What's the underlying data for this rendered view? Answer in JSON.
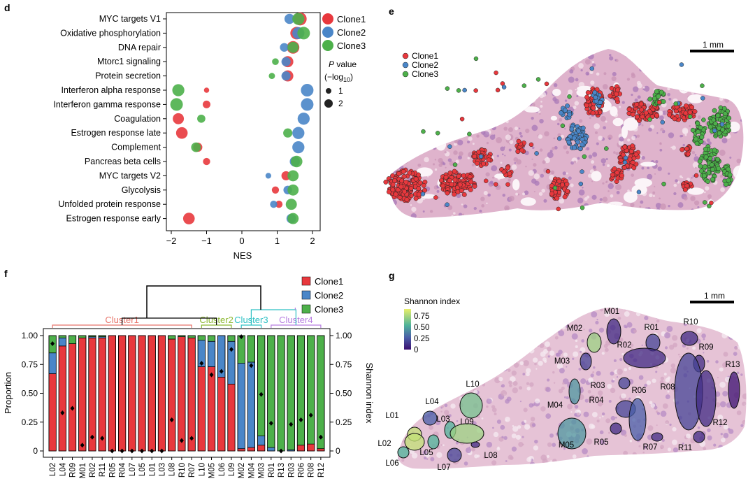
{
  "panels": {
    "d": "d",
    "e": "e",
    "f": "f",
    "g": "g"
  },
  "colors": {
    "clone1": "#e8383d",
    "clone2": "#4a86c8",
    "clone3": "#4db04a",
    "tissue": "#d9a9c4",
    "tissue_dark": "#8c5aa6"
  },
  "chart_data": [
    {
      "panel": "d",
      "type": "scatter",
      "title": "",
      "xlabel": "NES",
      "ylabel": "",
      "xlim": [
        -2.2,
        2.2
      ],
      "xticks": [
        "-2",
        "-1",
        "0",
        "1",
        "2"
      ],
      "xtick_values": [
        -2,
        -1,
        0,
        1,
        2
      ],
      "categories": [
        "MYC targets V1",
        "Oxidative phosphorylation",
        "DNA repair",
        "Mtorc1 signaling",
        "Protein secretion",
        "Interferon alpha response",
        "Interferon gamma response",
        "Coagulation",
        "Estrogen response late",
        "Complement",
        "Pancreas beta cells",
        "MYC targets V2",
        "Glycolysis",
        "Unfolded protein response",
        "Estrogen response early"
      ],
      "series": [
        {
          "name": "Clone1",
          "color": "#e8383d",
          "points": [
            [
              1.65,
              0,
              2.1
            ],
            [
              1.55,
              1,
              2.0
            ],
            [
              1.45,
              2,
              2.0
            ],
            [
              1.3,
              3,
              1.7
            ],
            [
              1.3,
              4,
              1.7
            ],
            [
              -1.0,
              5,
              0.5
            ],
            [
              -1.0,
              6,
              1.0
            ],
            [
              -1.8,
              7,
              1.7
            ],
            [
              -1.7,
              8,
              1.8
            ],
            [
              -1.25,
              9,
              1.3
            ],
            [
              -1.0,
              10,
              0.9
            ],
            [
              1.25,
              11,
              1.3
            ],
            [
              0.95,
              12,
              0.9
            ],
            [
              1.05,
              13,
              0.9
            ],
            [
              -1.5,
              14,
              1.8
            ]
          ]
        },
        {
          "name": "Clone2",
          "color": "#4a86c8",
          "points": [
            [
              1.35,
              0,
              1.5
            ],
            [
              1.6,
              1,
              1.9
            ],
            [
              1.2,
              2,
              1.2
            ],
            [
              1.25,
              3,
              1.3
            ],
            [
              1.25,
              4,
              1.3
            ],
            [
              1.85,
              5,
              2.0
            ],
            [
              1.85,
              6,
              2.0
            ],
            [
              1.75,
              7,
              1.9
            ],
            [
              1.6,
              8,
              1.9
            ],
            [
              1.6,
              9,
              1.9
            ],
            [
              1.5,
              10,
              1.5
            ],
            [
              0.75,
              11,
              0.6
            ],
            [
              1.3,
              12,
              1.2
            ],
            [
              0.9,
              13,
              0.9
            ],
            [
              1.4,
              14,
              1.4
            ]
          ]
        },
        {
          "name": "Clone3",
          "color": "#4db04a",
          "points": [
            [
              1.6,
              0,
              1.9
            ],
            [
              1.75,
              1,
              2.0
            ],
            [
              1.45,
              2,
              1.7
            ],
            [
              0.95,
              3,
              0.8
            ],
            [
              0.85,
              4,
              0.7
            ],
            [
              -1.8,
              5,
              1.9
            ],
            [
              -1.85,
              6,
              2.0
            ],
            [
              -1.15,
              7,
              1.1
            ],
            [
              1.3,
              8,
              1.3
            ],
            [
              -1.3,
              9,
              1.4
            ],
            [
              1.55,
              10,
              1.8
            ],
            [
              1.45,
              11,
              1.7
            ],
            [
              1.45,
              12,
              1.7
            ],
            [
              1.4,
              13,
              1.7
            ],
            [
              1.45,
              14,
              1.7
            ]
          ]
        }
      ],
      "legend": [
        "Clone1",
        "Clone2",
        "Clone3"
      ],
      "size_legend": {
        "title": "P value",
        "subtitle": "(−log10)",
        "items": [
          "1",
          "2"
        ]
      }
    },
    {
      "panel": "f",
      "type": "bar",
      "stacked": true,
      "ylabel": "Proportion",
      "y2label": "Shannon index",
      "ylim": [
        0,
        1
      ],
      "yticks": [
        "0",
        "0.25",
        "0.50",
        "0.75",
        "1.00"
      ],
      "categories": [
        "L02",
        "L04",
        "R09",
        "M01",
        "R02",
        "R11",
        "R05",
        "R04",
        "L07",
        "L05",
        "L01",
        "L03",
        "L08",
        "R10",
        "R07",
        "L10",
        "M05",
        "L06",
        "L09",
        "M02",
        "M04",
        "M03",
        "R01",
        "R13",
        "R03",
        "R06",
        "R08",
        "R12"
      ],
      "series": [
        {
          "name": "Clone1",
          "color": "#e8383d",
          "values": [
            0.67,
            0.91,
            0.93,
            0.98,
            0.98,
            0.98,
            1.0,
            1.0,
            1.0,
            1.0,
            1.0,
            1.0,
            0.97,
            0.99,
            0.98,
            0.73,
            0.73,
            0.64,
            0.58,
            0.02,
            0.03,
            0.05,
            0.0,
            0.0,
            0.0,
            0.05,
            0.06,
            0.02
          ]
        },
        {
          "name": "Clone2",
          "color": "#4a86c8",
          "values": [
            0.18,
            0.07,
            0.0,
            0.0,
            0.01,
            0.01,
            0.0,
            0.0,
            0.0,
            0.0,
            0.0,
            0.0,
            0.0,
            0.0,
            0.0,
            0.23,
            0.22,
            0.36,
            0.37,
            0.74,
            0.74,
            0.08,
            0.03,
            0.0,
            0.01,
            0.0,
            0.0,
            0.0
          ]
        },
        {
          "name": "Clone3",
          "color": "#4db04a",
          "values": [
            0.15,
            0.02,
            0.07,
            0.02,
            0.01,
            0.01,
            0.0,
            0.0,
            0.0,
            0.0,
            0.0,
            0.0,
            0.03,
            0.01,
            0.02,
            0.04,
            0.05,
            0.0,
            0.05,
            0.24,
            0.23,
            0.87,
            0.97,
            1.0,
            0.99,
            0.95,
            0.94,
            0.98
          ]
        }
      ],
      "shannon": [
        0.93,
        0.33,
        0.37,
        0.05,
        0.12,
        0.11,
        0.0,
        0.0,
        0.0,
        0.0,
        0.0,
        0.0,
        0.27,
        0.09,
        0.11,
        0.76,
        0.66,
        0.69,
        0.88,
        0.99,
        0.74,
        0.49,
        0.24,
        0.0,
        0.23,
        0.27,
        0.31,
        0.12
      ],
      "legend": [
        "Clone1",
        "Clone2",
        "Clone3"
      ],
      "clusters": [
        {
          "name": "Cluster1",
          "color": "#e8746a",
          "range": [
            0,
            14
          ]
        },
        {
          "name": "Cluster2",
          "color": "#8cb832",
          "range": [
            15,
            18
          ]
        },
        {
          "name": "Cluster3",
          "color": "#2ec0c4",
          "range": [
            19,
            21
          ]
        },
        {
          "name": "Cluster4",
          "color": "#b67de0",
          "range": [
            22,
            27
          ]
        }
      ]
    }
  ],
  "panel_e": {
    "legend": [
      "Clone1",
      "Clone2",
      "Clone3"
    ],
    "scale_bar": "1 mm"
  },
  "panel_g": {
    "legend_title": "Shannon index",
    "legend_ticks": [
      "0.75",
      "0.50",
      "0.25",
      "0"
    ],
    "scale_bar": "1 mm",
    "regions": [
      "M01",
      "M02",
      "R01",
      "R10",
      "R02",
      "R09",
      "M03",
      "R13",
      "L10",
      "R03",
      "R08",
      "L04",
      "M04",
      "R04",
      "R06",
      "L01",
      "L03",
      "L09",
      "R12",
      "R05",
      "L02",
      "R07",
      "R11",
      "L06",
      "L05",
      "L08",
      "M05",
      "L07"
    ]
  }
}
